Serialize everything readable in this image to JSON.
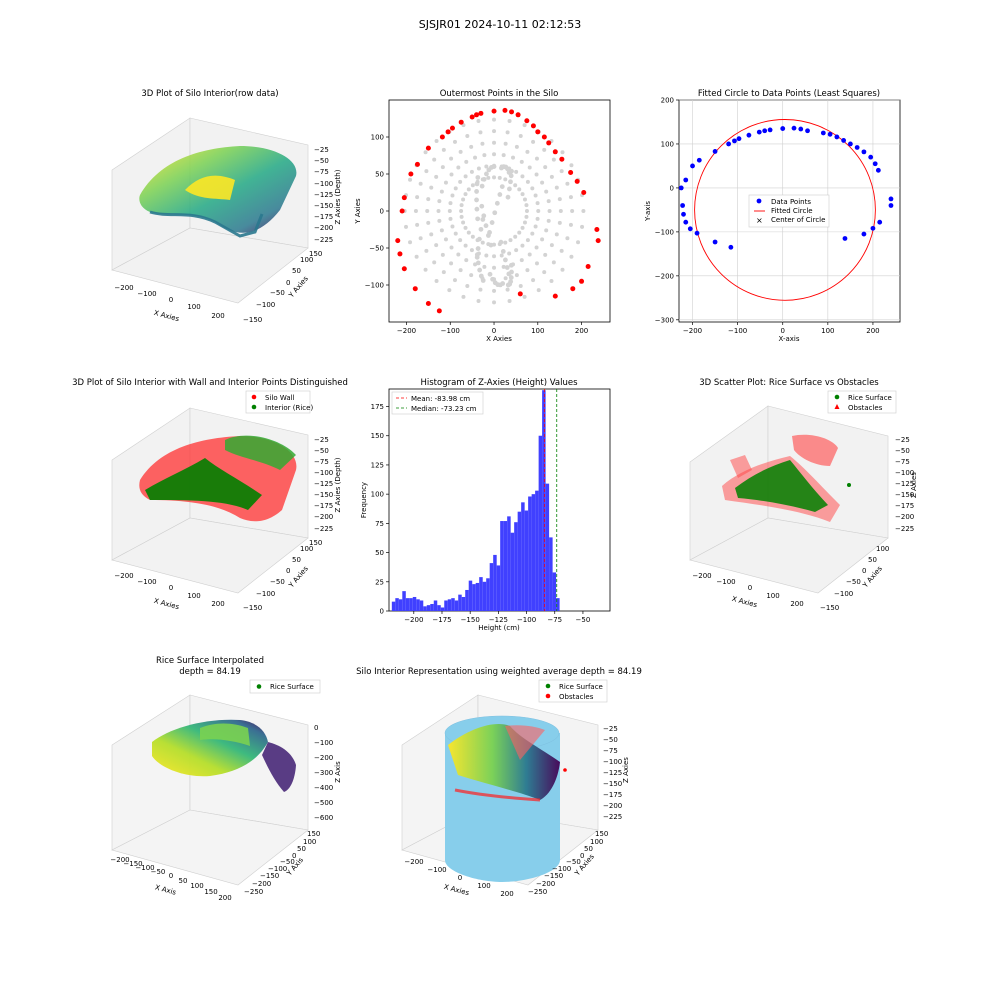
{
  "suptitle": "SJSJR01 2024-10-11 02:12:53",
  "colors": {
    "wall": "#ff0000",
    "interior": "#008000",
    "hist_bar": "#4040ff",
    "gray_points": "#d3d3d3",
    "data_points": "#0000ff",
    "cylinder": "#87ceeb",
    "mean_line": "#ff0000",
    "median_line": "#008000"
  },
  "chart_data": [
    {
      "type": "scatter3d",
      "title": "3D Plot of Silo Interior(row data)",
      "xlabel": "X Axies",
      "ylabel": "Y Axies",
      "zlabel": "Z Axies (Depth)",
      "x_ticks": [
        "−200",
        "−100",
        "0",
        "100",
        "200"
      ],
      "y_ticks": [
        "150",
        "100",
        "50",
        "0",
        "−50",
        "−100",
        "−150"
      ],
      "z_ticks": [
        "−25",
        "−50",
        "−75",
        "−100",
        "−125",
        "−150",
        "−175",
        "−200",
        "−225"
      ],
      "colormap": "viridis"
    },
    {
      "type": "scatter",
      "title": "Outermost Points in the Silo",
      "xlabel": "X Axies",
      "ylabel": "Y Axies",
      "xlim": [
        -240,
        265
      ],
      "ylim": [
        -150,
        150
      ],
      "x_ticks": [
        -200,
        -100,
        0,
        100,
        200
      ],
      "y_ticks": [
        -100,
        -50,
        0,
        50,
        100
      ],
      "outermost_points": [
        [
          -125,
          -135
        ],
        [
          -150,
          -125
        ],
        [
          -180,
          -105
        ],
        [
          -205,
          -78
        ],
        [
          -215,
          -58
        ],
        [
          -220,
          -40
        ],
        [
          -210,
          0
        ],
        [
          -205,
          18
        ],
        [
          -190,
          50
        ],
        [
          -175,
          63
        ],
        [
          -150,
          85
        ],
        [
          -118,
          100
        ],
        [
          -105,
          107
        ],
        [
          -95,
          112
        ],
        [
          -75,
          120
        ],
        [
          -50,
          127
        ],
        [
          -40,
          130
        ],
        [
          -30,
          132
        ],
        [
          0,
          135
        ],
        [
          25,
          136
        ],
        [
          40,
          134
        ],
        [
          55,
          130
        ],
        [
          75,
          122
        ],
        [
          90,
          115
        ],
        [
          100,
          107
        ],
        [
          115,
          100
        ],
        [
          125,
          92
        ],
        [
          140,
          80
        ],
        [
          155,
          70
        ],
        [
          175,
          52
        ],
        [
          190,
          40
        ],
        [
          205,
          25
        ],
        [
          215,
          -75
        ],
        [
          200,
          -95
        ],
        [
          180,
          -105
        ],
        [
          140,
          -115
        ],
        [
          60,
          -112
        ],
        [
          235,
          -25
        ],
        [
          238,
          -40
        ]
      ]
    },
    {
      "type": "scatter",
      "title": "Fitted Circle to Data Points (Least Squares)",
      "xlabel": "X-axis",
      "ylabel": "Y-axis",
      "xlim": [
        -230,
        260
      ],
      "ylim": [
        -305,
        200
      ],
      "x_ticks": [
        -200,
        -100,
        0,
        100,
        200
      ],
      "y_ticks": [
        -300,
        -200,
        -100,
        0,
        100,
        200
      ],
      "grid": true,
      "legend": [
        "Data Points",
        "Fitted Circle",
        "Center of Circle"
      ],
      "legend_position": "center",
      "data_points": [
        [
          -222,
          -40
        ],
        [
          -220,
          -60
        ],
        [
          -215,
          -78
        ],
        [
          -205,
          -93
        ],
        [
          -190,
          -103
        ],
        [
          -150,
          -123
        ],
        [
          -115,
          -135
        ],
        [
          -225,
          0
        ],
        [
          -215,
          18
        ],
        [
          -200,
          50
        ],
        [
          -185,
          63
        ],
        [
          -150,
          83
        ],
        [
          -120,
          100
        ],
        [
          -107,
          107
        ],
        [
          -97,
          112
        ],
        [
          -75,
          120
        ],
        [
          -52,
          127
        ],
        [
          -40,
          130
        ],
        [
          -28,
          132
        ],
        [
          0,
          135
        ],
        [
          25,
          136
        ],
        [
          40,
          134
        ],
        [
          55,
          130
        ],
        [
          90,
          125
        ],
        [
          105,
          122
        ],
        [
          120,
          116
        ],
        [
          135,
          108
        ],
        [
          150,
          100
        ],
        [
          165,
          92
        ],
        [
          180,
          82
        ],
        [
          195,
          70
        ],
        [
          205,
          55
        ],
        [
          212,
          40
        ],
        [
          240,
          -25
        ],
        [
          240,
          -40
        ],
        [
          215,
          -78
        ],
        [
          200,
          -92
        ],
        [
          180,
          -105
        ],
        [
          138,
          -115
        ]
      ],
      "circle": {
        "cx": 5,
        "cy": -50,
        "r": 203
      }
    },
    {
      "type": "scatter3d",
      "title": "3D Plot of Silo Interior with Wall and Interior Points Distinguished",
      "xlabel": "X Axies",
      "ylabel": "Y Axies",
      "zlabel": "Z Axies (Depth)",
      "legend": [
        "Silo Wall",
        "Interior (Rice)"
      ],
      "legend_position": "upper right",
      "x_ticks": [
        "−200",
        "−100",
        "0",
        "100",
        "200"
      ],
      "y_ticks": [
        "150",
        "100",
        "50",
        "0",
        "−50",
        "−100",
        "−150"
      ],
      "z_ticks": [
        "−25",
        "−50",
        "−75",
        "−100",
        "−125",
        "−150",
        "−175",
        "−200",
        "−225"
      ]
    },
    {
      "type": "bar",
      "title": "Histogram of Z-Axies (Height) Values",
      "xlabel": "Height (cm)",
      "ylabel": "Frequency",
      "xlim": [
        -222,
        -26
      ],
      "ylim": [
        0,
        190
      ],
      "x_ticks": [
        -200,
        -175,
        -150,
        -125,
        -100,
        -75,
        -50
      ],
      "y_ticks": [
        0,
        25,
        50,
        75,
        100,
        125,
        150,
        175
      ],
      "bin_start": -219.5,
      "bin_width": 3.1,
      "values": [
        8,
        11,
        10,
        17,
        11,
        11,
        12,
        10,
        9,
        4,
        5,
        6,
        9,
        5,
        3,
        9,
        10,
        11,
        9,
        14,
        12,
        18,
        26,
        23,
        24,
        29,
        25,
        28,
        41,
        48,
        39,
        77,
        77,
        81,
        67,
        76,
        85,
        93,
        86,
        98,
        100,
        103,
        150,
        189,
        109,
        63,
        33,
        11
      ],
      "mean": -83.98,
      "median": -73.23,
      "legend": [
        "Mean: -83.98 cm",
        "Median: -73.23 cm"
      ],
      "legend_position": "upper left"
    },
    {
      "type": "scatter3d",
      "title": "3D Scatter Plot: Rice Surface vs Obstacles",
      "xlabel": "X Axies",
      "ylabel": "Y Axies",
      "zlabel": "Z Axies",
      "legend": [
        "Rice Surface",
        "Obstacles"
      ],
      "legend_position": "upper right",
      "x_ticks": [
        "−200",
        "−100",
        "0",
        "100",
        "200"
      ],
      "y_ticks": [
        "100",
        "50",
        "0",
        "−50",
        "−100",
        "−150"
      ],
      "z_ticks": [
        "−25",
        "−50",
        "−75",
        "−100",
        "−125",
        "−150",
        "−175",
        "−200",
        "−225"
      ]
    },
    {
      "type": "surface3d",
      "title_lines": [
        "Rice Surface Interpolated",
        "depth = 84.19"
      ],
      "xlabel": "X Axis",
      "ylabel": "Y Axis",
      "zlabel": "Z Axis",
      "legend": [
        "Rice Surface"
      ],
      "legend_position": "upper right",
      "x_ticks": [
        "−200",
        "−150",
        "−100",
        "−50",
        "0",
        "50",
        "100",
        "150",
        "200"
      ],
      "y_ticks": [
        "150",
        "100",
        "50",
        "0",
        "−50",
        "−100",
        "−150",
        "−200",
        "−250"
      ],
      "z_ticks": [
        "0",
        "−100",
        "−200",
        "−300",
        "−400",
        "−500",
        "−600"
      ]
    },
    {
      "type": "surface3d",
      "title": "Silo Interior Representation using weighted average depth = 84.19",
      "xlabel": "X Axies",
      "ylabel": "Y Axies",
      "zlabel": "Z Axies",
      "legend": [
        "Rice Surface",
        "Obstacles"
      ],
      "legend_position": "upper center",
      "x_ticks": [
        "−200",
        "−100",
        "0",
        "100",
        "200"
      ],
      "y_ticks": [
        "150",
        "100",
        "50",
        "0",
        "−50",
        "−100",
        "−150",
        "−200",
        "−250"
      ],
      "z_ticks": [
        "−25",
        "−50",
        "−75",
        "−100",
        "−125",
        "−150",
        "−175",
        "−200",
        "−225"
      ]
    }
  ]
}
